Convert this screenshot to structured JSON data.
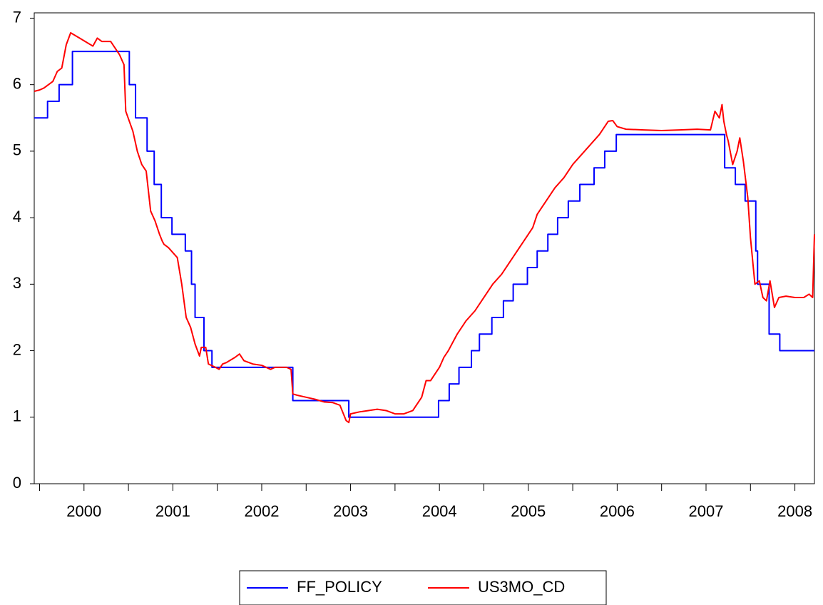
{
  "chart_data": {
    "type": "line",
    "xlim": [
      1999.94,
      2008.72
    ],
    "xticks": [
      2000,
      2001,
      2002,
      2003,
      2004,
      2005,
      2006,
      2007,
      2008
    ],
    "ylim": [
      0,
      7.08
    ],
    "yticks": [
      0,
      1,
      2,
      3,
      4,
      5,
      6,
      7
    ],
    "series": [
      {
        "name": "FF_POLICY",
        "color": "#0000ff",
        "x": [
          1999.94,
          2000.09,
          2000.09,
          2000.22,
          2000.22,
          2000.37,
          2000.37,
          2001.01,
          2001.01,
          2001.08,
          2001.08,
          2001.21,
          2001.21,
          2001.29,
          2001.29,
          2001.37,
          2001.37,
          2001.49,
          2001.49,
          2001.64,
          2001.64,
          2001.71,
          2001.71,
          2001.75,
          2001.75,
          2001.85,
          2001.85,
          2001.94,
          2001.94,
          2002.85,
          2002.85,
          2003.48,
          2003.48,
          2004.49,
          2004.49,
          2004.61,
          2004.61,
          2004.72,
          2004.72,
          2004.86,
          2004.86,
          2004.95,
          2004.95,
          2005.09,
          2005.09,
          2005.22,
          2005.22,
          2005.33,
          2005.33,
          2005.49,
          2005.49,
          2005.6,
          2005.6,
          2005.72,
          2005.72,
          2005.83,
          2005.83,
          2005.95,
          2005.95,
          2006.08,
          2006.08,
          2006.24,
          2006.24,
          2006.36,
          2006.36,
          2006.49,
          2006.49,
          2007.71,
          2007.71,
          2007.83,
          2007.83,
          2007.94,
          2007.94,
          2008.06,
          2008.06,
          2008.08,
          2008.08,
          2008.21,
          2008.21,
          2008.33,
          2008.33,
          2008.72
        ],
        "values": [
          5.5,
          5.5,
          5.75,
          5.75,
          6.0,
          6.0,
          6.5,
          6.5,
          6.0,
          6.0,
          5.5,
          5.5,
          5.0,
          5.0,
          4.5,
          4.5,
          4.0,
          4.0,
          3.75,
          3.75,
          3.5,
          3.5,
          3.0,
          3.0,
          2.5,
          2.5,
          2.0,
          2.0,
          1.75,
          1.75,
          1.25,
          1.25,
          1.0,
          1.0,
          1.25,
          1.25,
          1.5,
          1.5,
          1.75,
          1.75,
          2.0,
          2.0,
          2.25,
          2.25,
          2.5,
          2.5,
          2.75,
          2.75,
          3.0,
          3.0,
          3.25,
          3.25,
          3.5,
          3.5,
          3.75,
          3.75,
          4.0,
          4.0,
          4.25,
          4.25,
          4.5,
          4.5,
          4.75,
          4.75,
          5.0,
          5.0,
          5.25,
          5.25,
          4.75,
          4.75,
          4.5,
          4.5,
          4.25,
          4.25,
          3.5,
          3.5,
          3.0,
          3.0,
          2.25,
          2.25,
          2.0,
          2.0
        ]
      },
      {
        "name": "US3MO_CD",
        "color": "#ff0000",
        "x": [
          1999.94,
          2000.0,
          2000.05,
          2000.1,
          2000.15,
          2000.2,
          2000.25,
          2000.3,
          2000.35,
          2000.45,
          2000.55,
          2000.6,
          2000.65,
          2000.7,
          2000.8,
          2000.9,
          2000.95,
          2000.97,
          2001.05,
          2001.1,
          2001.15,
          2001.2,
          2001.25,
          2001.3,
          2001.35,
          2001.38,
          2001.4,
          2001.45,
          2001.55,
          2001.6,
          2001.65,
          2001.7,
          2001.75,
          2001.8,
          2001.82,
          2001.87,
          2001.9,
          2001.98,
          2002.02,
          2002.06,
          2002.1,
          2002.2,
          2002.25,
          2002.3,
          2002.4,
          2002.5,
          2002.6,
          2002.65,
          2002.78,
          2002.83,
          2002.85,
          2002.9,
          2003.0,
          2003.1,
          2003.2,
          2003.3,
          2003.38,
          2003.45,
          2003.48,
          2003.5,
          2003.6,
          2003.7,
          2003.8,
          2003.9,
          2004.0,
          2004.1,
          2004.2,
          2004.3,
          2004.35,
          2004.4,
          2004.45,
          2004.5,
          2004.55,
          2004.6,
          2004.7,
          2004.8,
          2004.9,
          2005.0,
          2005.1,
          2005.2,
          2005.3,
          2005.4,
          2005.5,
          2005.55,
          2005.6,
          2005.7,
          2005.8,
          2005.9,
          2006.0,
          2006.1,
          2006.2,
          2006.3,
          2006.4,
          2006.45,
          2006.5,
          2006.6,
          2006.8,
          2007.0,
          2007.2,
          2007.4,
          2007.55,
          2007.6,
          2007.65,
          2007.68,
          2007.7,
          2007.73,
          2007.75,
          2007.8,
          2007.85,
          2007.88,
          2007.92,
          2007.97,
          2008.0,
          2008.05,
          2008.1,
          2008.14,
          2008.18,
          2008.22,
          2008.27,
          2008.32,
          2008.4,
          2008.5,
          2008.6,
          2008.66,
          2008.7,
          2008.72
        ],
        "values": [
          5.9,
          5.92,
          5.95,
          6.0,
          6.05,
          6.2,
          6.25,
          6.6,
          6.78,
          6.7,
          6.62,
          6.58,
          6.7,
          6.65,
          6.65,
          6.45,
          6.3,
          5.6,
          5.3,
          5.0,
          4.8,
          4.7,
          4.1,
          3.95,
          3.75,
          3.65,
          3.6,
          3.55,
          3.4,
          3.0,
          2.5,
          2.35,
          2.1,
          1.92,
          2.05,
          2.05,
          1.8,
          1.75,
          1.72,
          1.8,
          1.82,
          1.9,
          1.95,
          1.85,
          1.8,
          1.78,
          1.72,
          1.75,
          1.75,
          1.72,
          1.35,
          1.33,
          1.3,
          1.27,
          1.23,
          1.22,
          1.18,
          0.95,
          0.92,
          1.05,
          1.08,
          1.1,
          1.12,
          1.1,
          1.05,
          1.05,
          1.1,
          1.3,
          1.55,
          1.55,
          1.65,
          1.75,
          1.9,
          2.0,
          2.25,
          2.45,
          2.6,
          2.8,
          3.0,
          3.15,
          3.35,
          3.55,
          3.75,
          3.85,
          4.05,
          4.25,
          4.45,
          4.6,
          4.8,
          4.95,
          5.1,
          5.25,
          5.45,
          5.46,
          5.37,
          5.33,
          5.32,
          5.31,
          5.32,
          5.33,
          5.32,
          5.6,
          5.5,
          5.7,
          5.45,
          5.25,
          5.15,
          4.8,
          5.0,
          5.2,
          4.85,
          4.3,
          3.7,
          3.0,
          3.05,
          2.8,
          2.75,
          3.05,
          2.65,
          2.8,
          2.82,
          2.8,
          2.8,
          2.85,
          2.8,
          3.75
        ]
      }
    ]
  }
}
